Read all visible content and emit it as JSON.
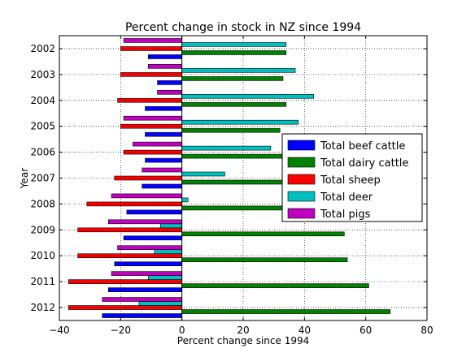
{
  "chart_data": {
    "type": "bar",
    "orientation": "horizontal",
    "title": "Percent change in stock in NZ since 1994",
    "xlabel": "Percent change since 1994",
    "ylabel": "Year",
    "xlim": [
      -40,
      80
    ],
    "xticks": [
      -40,
      -20,
      0,
      20,
      40,
      60,
      80
    ],
    "grid": true,
    "legend_position": "center-right",
    "categories": [
      "2002",
      "2003",
      "2004",
      "2005",
      "2006",
      "2007",
      "2008",
      "2009",
      "2010",
      "2011",
      "2012"
    ],
    "series": [
      {
        "name": "Total beef cattle",
        "color": "#0000ff",
        "values": [
          -11,
          -8,
          -12,
          -12,
          -12,
          -13,
          -18,
          -19,
          -22,
          -24,
          -26
        ]
      },
      {
        "name": "Total dairy cattle",
        "color": "#008000",
        "values": [
          34,
          33,
          34,
          32,
          36,
          36,
          35,
          53,
          54,
          61,
          68
        ]
      },
      {
        "name": "Total sheep",
        "color": "#ff0000",
        "values": [
          -20,
          -20,
          -21,
          -20,
          -19,
          -22,
          -31,
          -34,
          -34,
          -37,
          -37
        ]
      },
      {
        "name": "Total deer",
        "color": "#00bfbf",
        "values": [
          34,
          37,
          43,
          38,
          29,
          14,
          2,
          -7,
          -9,
          -11,
          -14
        ]
      },
      {
        "name": "Total pigs",
        "color": "#bf00bf",
        "values": [
          -19,
          -11,
          -8,
          -19,
          -16,
          -13,
          -23,
          -24,
          -21,
          -23,
          -26
        ]
      }
    ]
  }
}
